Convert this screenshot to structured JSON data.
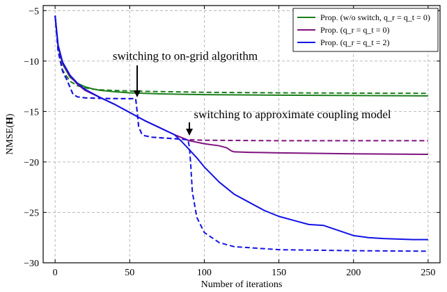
{
  "chart_data": {
    "type": "line",
    "title": "",
    "xlabel": "Number of iterations",
    "ylabel": "NMSE(H)",
    "xlim": [
      -8,
      258
    ],
    "ylim": [
      -30,
      -4.5
    ],
    "xticks": [
      0,
      50,
      100,
      150,
      200,
      250
    ],
    "xtick_labels": [
      "0",
      "50",
      "100",
      "150",
      "200",
      "250"
    ],
    "yticks": [
      -5,
      -10,
      -15,
      -20,
      -25,
      -30
    ],
    "ytick_labels": [
      "−5",
      "−10",
      "−15",
      "−20",
      "−25",
      "−30"
    ],
    "grid": true,
    "legend_position": "top-right",
    "legend": [
      {
        "label": "Prop. (w/o switch, q_r = q_t = 0)",
        "color": "#1a7f1a"
      },
      {
        "label": "Prop. (q_r = q_t = 0)",
        "color": "#7f127f"
      },
      {
        "label": "Prop. (q_r = q_t = 2)",
        "color": "#1212e6"
      }
    ],
    "annotations": [
      {
        "text": "switching to on-grid algorithm",
        "arrow_x": 55,
        "arrow_y": -13.6
      },
      {
        "text": "switching to approximate coupling model",
        "arrow_x": 90,
        "arrow_y": -17.4
      }
    ],
    "series": [
      {
        "color": "#1a7f1a",
        "dash": "solid",
        "x": [
          0,
          2,
          5,
          10,
          15,
          20,
          25,
          30,
          40,
          50,
          60,
          70,
          80,
          100,
          150,
          200,
          250
        ],
        "y": [
          -5.5,
          -8.6,
          -10.3,
          -11.6,
          -12.2,
          -12.55,
          -12.75,
          -12.9,
          -13.05,
          -13.15,
          -13.2,
          -13.25,
          -13.28,
          -13.33,
          -13.38,
          -13.42,
          -13.45
        ]
      },
      {
        "color": "#1a7f1a",
        "dash": "dashed",
        "x": [
          0,
          2,
          5,
          10,
          15,
          20,
          25,
          30,
          40,
          50,
          60,
          70,
          80,
          100,
          150,
          200,
          250
        ],
        "y": [
          -5.5,
          -8.9,
          -10.9,
          -12.0,
          -12.45,
          -12.65,
          -12.78,
          -12.85,
          -12.92,
          -12.97,
          -13.0,
          -13.03,
          -13.05,
          -13.1,
          -13.15,
          -13.18,
          -13.2
        ]
      },
      {
        "color": "#7f127f",
        "dash": "solid",
        "x": [
          0,
          2,
          5,
          10,
          15,
          20,
          30,
          40,
          50,
          55,
          60,
          70,
          80,
          90,
          100,
          110,
          115,
          118,
          120,
          130,
          150,
          200,
          250
        ],
        "y": [
          -5.5,
          -8.5,
          -10.2,
          -11.5,
          -12.3,
          -12.9,
          -13.6,
          -14.3,
          -15.1,
          -15.5,
          -15.9,
          -16.6,
          -17.3,
          -17.9,
          -18.2,
          -18.4,
          -18.6,
          -18.9,
          -19.0,
          -19.05,
          -19.1,
          -19.2,
          -19.25
        ]
      },
      {
        "color": "#7f127f",
        "dash": "dashed",
        "x": [
          0,
          2,
          5,
          8,
          10,
          12,
          15,
          20,
          30,
          40,
          50,
          54,
          55,
          56,
          58,
          60,
          65,
          70,
          80,
          90,
          100,
          150,
          200,
          250
        ],
        "y": [
          -5.5,
          -9.0,
          -11.0,
          -11.9,
          -12.6,
          -13.3,
          -13.55,
          -13.65,
          -13.7,
          -13.72,
          -13.73,
          -13.73,
          -15.0,
          -16.5,
          -17.2,
          -17.4,
          -17.55,
          -17.6,
          -17.7,
          -17.8,
          -17.85,
          -17.9,
          -17.9,
          -17.9
        ]
      },
      {
        "color": "#1212e6",
        "dash": "solid",
        "x": [
          0,
          2,
          5,
          10,
          15,
          20,
          30,
          40,
          50,
          55,
          60,
          70,
          80,
          85,
          90,
          95,
          100,
          110,
          120,
          130,
          140,
          150,
          160,
          170,
          180,
          190,
          200,
          210,
          220,
          230,
          240,
          250
        ],
        "y": [
          -5.5,
          -8.4,
          -10.1,
          -11.4,
          -12.2,
          -12.8,
          -13.6,
          -14.3,
          -15.1,
          -15.5,
          -15.9,
          -16.6,
          -17.3,
          -18.0,
          -18.8,
          -19.6,
          -20.5,
          -22.0,
          -23.2,
          -24.0,
          -24.8,
          -25.4,
          -25.8,
          -26.2,
          -26.3,
          -26.8,
          -27.3,
          -27.5,
          -27.6,
          -27.65,
          -27.7,
          -27.7
        ]
      },
      {
        "color": "#1212e6",
        "dash": "dashed",
        "x": [
          0,
          2,
          5,
          8,
          10,
          12,
          15,
          20,
          30,
          40,
          50,
          54,
          55,
          56,
          58,
          60,
          65,
          70,
          80,
          89,
          90,
          91,
          92,
          95,
          100,
          110,
          120,
          150,
          200,
          250
        ],
        "y": [
          -5.5,
          -9.0,
          -11.0,
          -11.9,
          -12.6,
          -13.3,
          -13.55,
          -13.65,
          -13.7,
          -13.72,
          -13.73,
          -13.73,
          -15.0,
          -16.5,
          -17.2,
          -17.4,
          -17.55,
          -17.6,
          -17.7,
          -17.8,
          -18.5,
          -20.5,
          -23.0,
          -25.5,
          -27.0,
          -28.0,
          -28.4,
          -28.7,
          -28.8,
          -28.85
        ]
      }
    ]
  }
}
